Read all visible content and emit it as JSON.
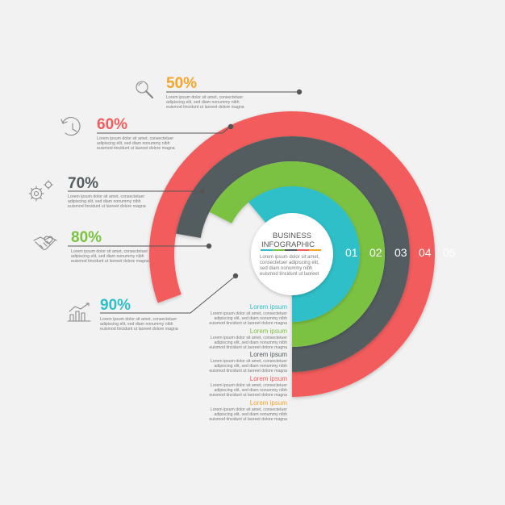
{
  "colors": {
    "orange": "#f4a62a",
    "red": "#f25c5c",
    "dark": "#535d61",
    "green": "#7cc242",
    "teal": "#2ebfc9"
  },
  "center": {
    "title_line1": "BUSINESS",
    "title_line2": "INFOGRAPHIC",
    "desc": [
      "Lorem ipsum dolor sit amet,",
      "consectetuer adipiscing elit,",
      "sed diam nonummy nibh",
      "euismod tincidunt ut laoreet"
    ]
  },
  "rings": [
    {
      "number": "01",
      "color": "teal"
    },
    {
      "number": "02",
      "color": "green"
    },
    {
      "number": "03",
      "color": "dark"
    },
    {
      "number": "04",
      "color": "red"
    },
    {
      "number": "05",
      "color": "orange"
    }
  ],
  "callouts": [
    {
      "percent": "50%",
      "color": "orange",
      "icon": "magnifier-icon",
      "desc": [
        "Lorem ipsum dolor sit amet, consectetuer",
        "adipiscing elit, sed diam nonummy nibh",
        "euismod tincidunt ut laoreet dolore magna"
      ]
    },
    {
      "percent": "60%",
      "color": "red",
      "icon": "clock-refresh-icon",
      "desc": [
        "Lorem ipsum dolor sit amet, consectetuer",
        "adipiscing elit, sed diam nonummy nibh",
        "euismod tincidunt ut laoreet dolore magna"
      ]
    },
    {
      "percent": "70%",
      "color": "dark",
      "icon": "gears-icon",
      "desc": [
        "Lorem ipsum dolor sit amet, consectetuer",
        "adipiscing elit, sed diam nonummy nibh",
        "euismod tincidunt ut laoreet dolore magna"
      ]
    },
    {
      "percent": "80%",
      "color": "green",
      "icon": "handshake-icon",
      "desc": [
        "Lorem ipsum dolor sit amet, consectetuer",
        "adipiscing elit, sed diam nonummy nibh",
        "euismod tincidunt ut laoreet dolore magna"
      ]
    },
    {
      "percent": "90%",
      "color": "teal",
      "icon": "bar-chart-icon",
      "desc": [
        "Lorem ipsum dolor sit amet, consectetuer",
        "adipiscing elit, sed diam nonummy nibh",
        "euismod tincidunt ut laoreet dolore magna"
      ]
    }
  ],
  "lorem_items": [
    {
      "title": "Lorem ipsum",
      "color": "teal",
      "desc": [
        "Lorem ipsum dolor sit amet, consectetuer",
        "adipiscing elit, sed diam nonummy nibh",
        "euismod tincidunt ut laoreet dolore magna"
      ]
    },
    {
      "title": "Lorem ipsum",
      "color": "green",
      "desc": [
        "Lorem ipsum dolor sit amet, consectetuer",
        "adipiscing elit, sed diam nonummy nibh",
        "euismod tincidunt ut laoreet dolore magna"
      ]
    },
    {
      "title": "Lorem ipsum",
      "color": "dark",
      "desc": [
        "Lorem ipsum dolor sit amet, consectetuer",
        "adipiscing elit, sed diam nonummy nibh",
        "euismod tincidunt ut laoreet dolore magna"
      ]
    },
    {
      "title": "Lorem ipsum",
      "color": "red",
      "desc": [
        "Lorem ipsum dolor sit amet, consectetuer",
        "adipiscing elit, sed diam nonummy nibh",
        "euismod tincidunt ut laoreet dolore magna"
      ]
    },
    {
      "title": "Lorem ipsum",
      "color": "orange",
      "desc": [
        "Lorem ipsum dolor sit amet, consectetuer",
        "adipiscing elit, sed diam nonummy nibh",
        "euismod tincidunt ut laoreet dolore magna"
      ]
    }
  ]
}
